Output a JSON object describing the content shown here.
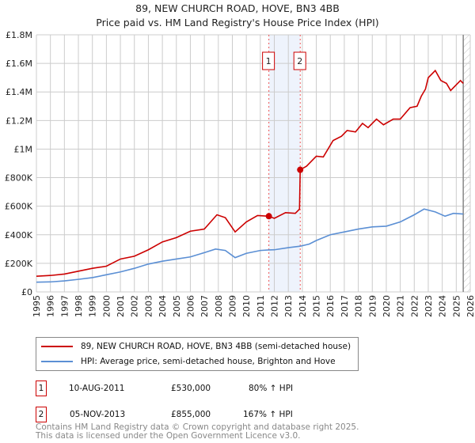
{
  "title": "89, NEW CHURCH ROAD, HOVE, BN3 4BB",
  "subtitle": "Price paid vs. HM Land Registry's House Price Index (HPI)",
  "chart_data": {
    "type": "line",
    "title": "89, NEW CHURCH ROAD, HOVE, BN3 4BB — Price paid vs. HM Land Registry's House Price Index (HPI)",
    "xlim": [
      1995,
      2026
    ],
    "ylim": [
      0,
      1800000
    ],
    "x_ticks": [
      "1995",
      "1996",
      "1997",
      "1998",
      "1999",
      "2000",
      "2001",
      "2002",
      "2003",
      "2004",
      "2005",
      "2006",
      "2007",
      "2008",
      "2009",
      "2010",
      "2011",
      "2012",
      "2013",
      "2014",
      "2015",
      "2016",
      "2017",
      "2018",
      "2019",
      "2020",
      "2021",
      "2022",
      "2023",
      "2024",
      "2025",
      "2026"
    ],
    "y_ticks": [
      {
        "v": 0,
        "label": "£0"
      },
      {
        "v": 200000,
        "label": "£200K"
      },
      {
        "v": 400000,
        "label": "£400K"
      },
      {
        "v": 600000,
        "label": "£600K"
      },
      {
        "v": 800000,
        "label": "£800K"
      },
      {
        "v": 1000000,
        "label": "£1M"
      },
      {
        "v": 1200000,
        "label": "£1.2M"
      },
      {
        "v": 1400000,
        "label": "£1.4M"
      },
      {
        "v": 1600000,
        "label": "£1.6M"
      },
      {
        "v": 1800000,
        "label": "£1.8M"
      }
    ],
    "grid": true,
    "series": [
      {
        "name": "89, NEW CHURCH ROAD, HOVE, BN3 4BB (semi-detached house)",
        "color": "#cc0000",
        "x": [
          1995,
          1996,
          1997,
          1998,
          1999,
          2000,
          2001,
          2002,
          2003,
          2004,
          2005,
          2006,
          2007,
          2007.9,
          2008.5,
          2009.2,
          2010,
          2010.8,
          2011.6,
          2012,
          2012.8,
          2013.5,
          2013.8,
          2013.85,
          2014.3,
          2015,
          2015.5,
          2016.2,
          2016.8,
          2017.2,
          2017.8,
          2018.3,
          2018.7,
          2019.3,
          2019.8,
          2020.5,
          2021,
          2021.7,
          2022.2,
          2022.5,
          2022.8,
          2023,
          2023.5,
          2023.9,
          2024.3,
          2024.6,
          2025,
          2025.3,
          2025.5
        ],
        "values": [
          110000,
          115000,
          125000,
          145000,
          165000,
          180000,
          230000,
          250000,
          295000,
          350000,
          380000,
          425000,
          440000,
          540000,
          520000,
          420000,
          490000,
          535000,
          530000,
          515000,
          555000,
          550000,
          580000,
          855000,
          880000,
          950000,
          945000,
          1060000,
          1090000,
          1130000,
          1120000,
          1180000,
          1150000,
          1210000,
          1170000,
          1210000,
          1210000,
          1290000,
          1300000,
          1370000,
          1420000,
          1500000,
          1550000,
          1480000,
          1460000,
          1410000,
          1450000,
          1480000,
          1460000
        ]
      },
      {
        "name": "HPI: Average price, semi-detached house, Brighton and Hove",
        "color": "#5b8fd4",
        "x": [
          1995,
          1996,
          1997,
          1998,
          1999,
          2000,
          2001,
          2002,
          2003,
          2004,
          2005,
          2006,
          2007,
          2007.8,
          2008.5,
          2009.2,
          2010,
          2011,
          2011.6,
          2012,
          2013,
          2013.85,
          2014.5,
          2015,
          2016,
          2017,
          2018,
          2019,
          2020,
          2021,
          2022,
          2022.7,
          2023.5,
          2024.2,
          2024.8,
          2025.5
        ],
        "values": [
          68000,
          70000,
          77000,
          88000,
          100000,
          120000,
          140000,
          165000,
          195000,
          215000,
          230000,
          245000,
          275000,
          300000,
          290000,
          240000,
          270000,
          290000,
          294000,
          295000,
          310000,
          320000,
          335000,
          360000,
          400000,
          420000,
          440000,
          455000,
          460000,
          490000,
          540000,
          580000,
          560000,
          530000,
          550000,
          545000
        ]
      }
    ],
    "sales": [
      {
        "label": "1",
        "x": 2011.61,
        "value": 530000
      },
      {
        "label": "2",
        "x": 2013.85,
        "value": 855000
      }
    ],
    "shaded_range": [
      2011.61,
      2013.85
    ],
    "hatched_after": 2025.5
  },
  "legend": [
    {
      "label": "89, NEW CHURCH ROAD, HOVE, BN3 4BB (semi-detached house)",
      "color": "#cc0000"
    },
    {
      "label": "HPI: Average price, semi-detached house, Brighton and Hove",
      "color": "#5b8fd4"
    }
  ],
  "transactions": [
    {
      "num": "1",
      "date": "10-AUG-2011",
      "price": "£530,000",
      "hpi": "80% ↑ HPI"
    },
    {
      "num": "2",
      "date": "05-NOV-2013",
      "price": "£855,000",
      "hpi": "167% ↑ HPI"
    }
  ],
  "footer": [
    "Contains HM Land Registry data © Crown copyright and database right 2025.",
    "This data is licensed under the Open Government Licence v3.0."
  ]
}
